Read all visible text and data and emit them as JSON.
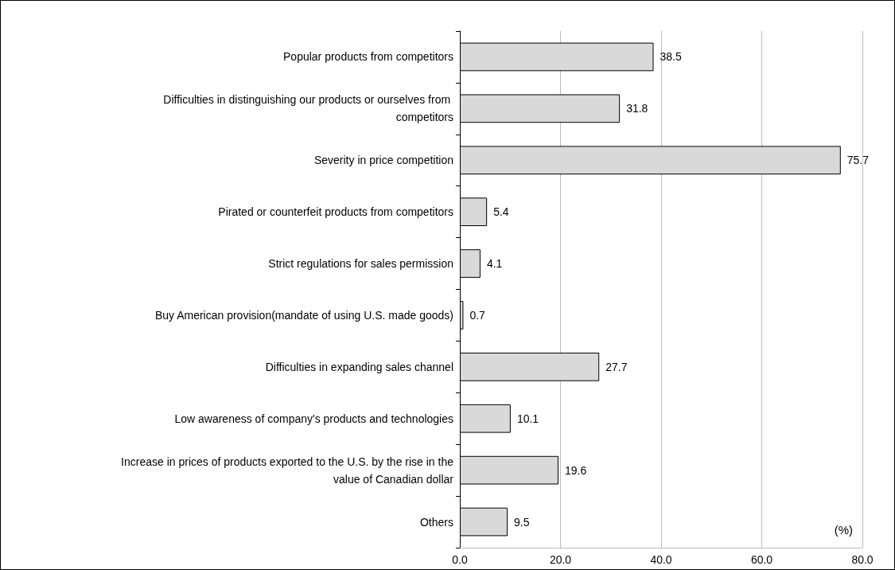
{
  "chart_data": {
    "type": "bar",
    "orientation": "horizontal",
    "xlabel": "(%)",
    "categories": [
      "Popular products from competitors",
      "Difficulties in distinguishing our products or ourselves from competitors",
      "Severity in price competition",
      "Pirated or counterfeit products from competitors",
      "Strict regulations for sales permission",
      "Buy American provision(mandate of using U.S. made goods)",
      "Difficulties in expanding sales channel",
      "Low awareness of company's products and technologies",
      "Increase in prices of products exported to the U.S. by the rise in the value of Canadian dollar",
      "Others"
    ],
    "values": [
      38.5,
      31.8,
      75.7,
      5.4,
      4.1,
      0.7,
      27.7,
      10.1,
      19.6,
      9.5
    ],
    "color": "#d9d9d9",
    "xlim": [
      0,
      80
    ],
    "xticks": [
      {
        "value": 0,
        "label": "0.0"
      },
      {
        "value": 20,
        "label": "20.0"
      },
      {
        "value": 40,
        "label": "40.0"
      },
      {
        "value": 60,
        "label": "60.0"
      },
      {
        "value": 80,
        "label": "80.0"
      }
    ],
    "value_labels": [
      "38.5",
      "31.8",
      "75.7",
      "5.4",
      "4.1",
      "0.7",
      "27.7",
      "10.1",
      "19.6",
      "9.5"
    ],
    "grid": "x"
  }
}
